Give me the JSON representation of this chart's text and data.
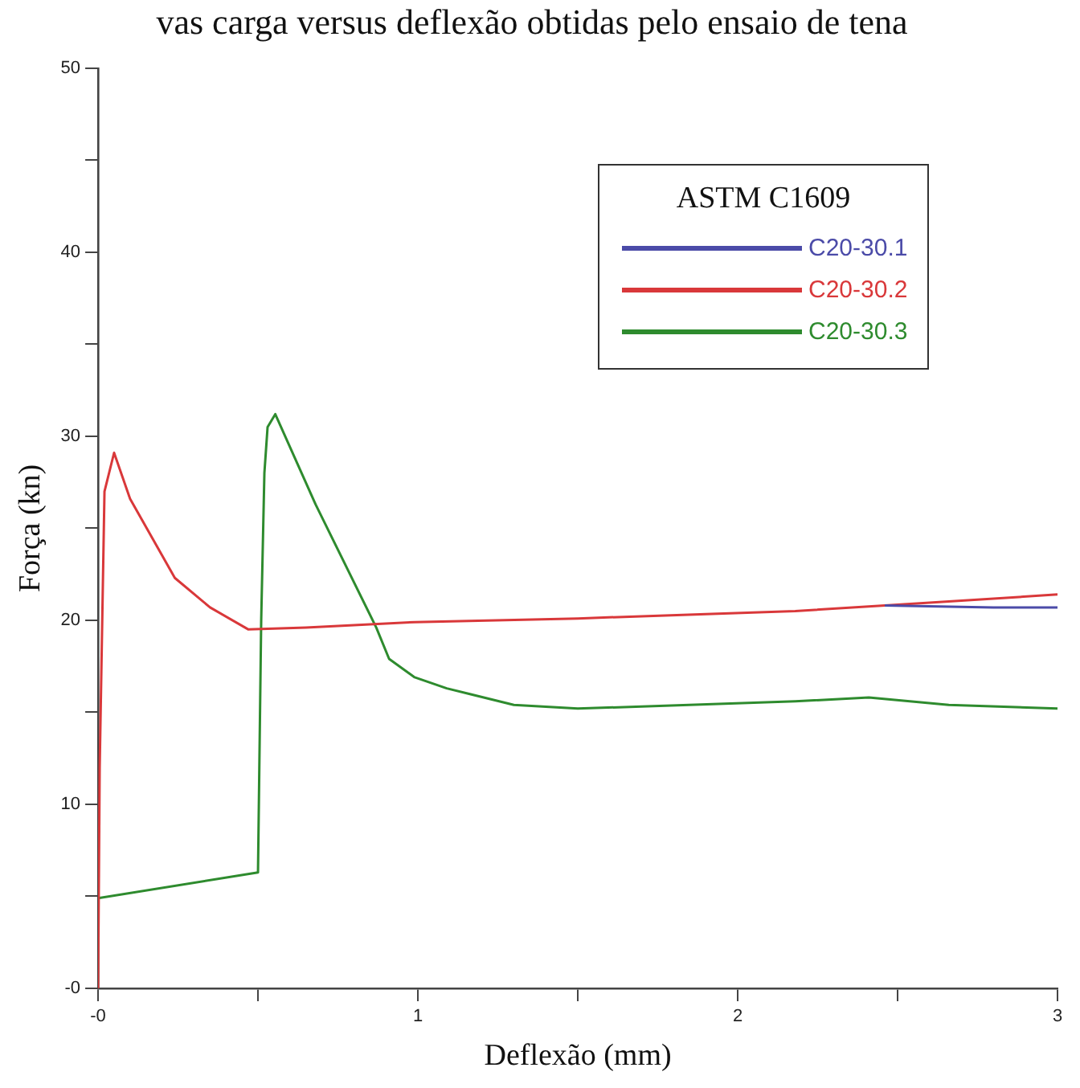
{
  "chart_data": {
    "type": "line",
    "title": "vas carga versus deflexão obtidas pelo ensaio de tena",
    "xlabel": "Deflexão (mm)",
    "ylabel": "Força (kn)",
    "legend_title": "ASTM C1609",
    "legend": "top right",
    "grid": false,
    "marker": "none",
    "line_style": "solid",
    "xlim": [
      0,
      3
    ],
    "ylim": [
      0,
      50
    ],
    "xticks": [
      {
        "value": 0,
        "label": "-0"
      },
      {
        "value": 0.5,
        "label": null
      },
      1,
      {
        "value": 1.5,
        "label": null
      },
      2,
      {
        "value": 2.5,
        "label": null
      },
      3
    ],
    "yticks": [
      {
        "value": 0,
        "label": "-0"
      },
      {
        "value": 5,
        "label": null
      },
      10,
      {
        "value": 15,
        "label": null
      },
      20,
      {
        "value": 25,
        "label": null
      },
      30,
      {
        "value": 35,
        "label": null
      },
      40,
      {
        "value": 45,
        "label": null
      },
      50
    ],
    "series": [
      {
        "name": "C20-30.1",
        "color": "#4b4ba8",
        "x": [
          2.46,
          2.8,
          3.0
        ],
        "values": [
          20.8,
          20.7,
          20.7
        ]
      },
      {
        "name": "C20-30.2",
        "color": "#d9383a",
        "x": [
          0,
          0.005,
          0.02,
          0.05,
          0.1,
          0.24,
          0.35,
          0.47,
          0.65,
          0.99,
          1.5,
          2.18,
          2.46,
          3.0
        ],
        "values": [
          0,
          12,
          27,
          29.1,
          26.6,
          22.3,
          20.7,
          19.5,
          19.6,
          19.9,
          20.1,
          20.5,
          20.8,
          21.4
        ]
      },
      {
        "name": "C20-30.3",
        "color": "#2e8b2e",
        "x": [
          0,
          0.5,
          0.51,
          0.52,
          0.53,
          0.554,
          0.68,
          0.87,
          0.91,
          0.99,
          1.09,
          1.16,
          1.3,
          1.5,
          2.18,
          2.41,
          2.66,
          3.0
        ],
        "values": [
          4.9,
          6.3,
          20,
          28,
          30.5,
          31.2,
          26.3,
          19.6,
          17.9,
          16.9,
          16.3,
          16.0,
          15.4,
          15.2,
          15.6,
          15.8,
          15.4,
          15.2
        ]
      }
    ]
  }
}
